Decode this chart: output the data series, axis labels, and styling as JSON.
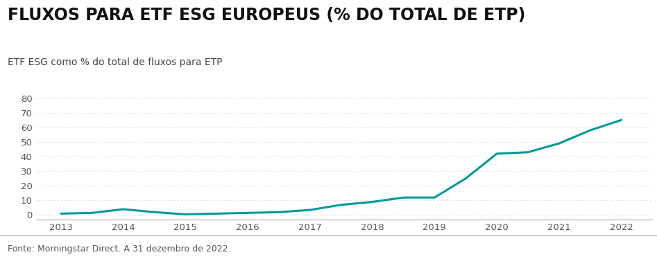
{
  "title": "FLUXOS PARA ETF ESG EUROPEUS (% DO TOTAL DE ETP)",
  "subtitle": "ETF ESG como % do total de fluxos para ETP",
  "footnote": "Fonte: Morningstar Direct. A 31 dezembro de 2022.",
  "x_values": [
    2013,
    2013.5,
    2014,
    2014.5,
    2015,
    2015.5,
    2016,
    2016.5,
    2017,
    2017.5,
    2018,
    2018.5,
    2019,
    2019.5,
    2020,
    2020.5,
    2021,
    2021.5,
    2022
  ],
  "y_values": [
    1,
    1.5,
    4,
    2,
    0.5,
    1,
    1.5,
    2,
    3.5,
    7,
    9,
    12,
    12,
    25,
    42,
    43,
    49,
    58,
    65
  ],
  "x_ticks": [
    2013,
    2014,
    2015,
    2016,
    2017,
    2018,
    2019,
    2020,
    2021,
    2022
  ],
  "y_ticks": [
    0,
    10,
    20,
    30,
    40,
    50,
    60,
    70,
    80
  ],
  "ylim": [
    -3,
    88
  ],
  "xlim": [
    2012.6,
    2022.5
  ],
  "line_color": "#009999",
  "line_width": 2.2,
  "accent_bar_color": "#009999",
  "title_fontsize": 17,
  "subtitle_fontsize": 10,
  "footnote_fontsize": 9,
  "tick_fontsize": 9.5,
  "bg_color": "#ffffff",
  "grid_color": "#cccccc",
  "separator_color": "#999999"
}
